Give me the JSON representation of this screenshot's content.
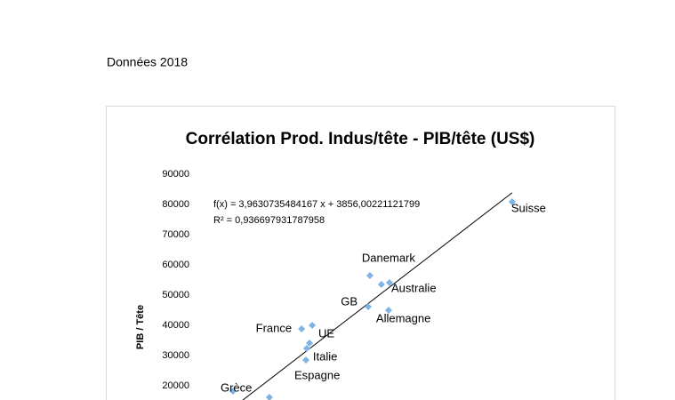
{
  "header": {
    "text": "Données 2018"
  },
  "chart_data": {
    "type": "scatter",
    "title": "Corrélation Prod. Indus/tête - PIB/tête (US$)",
    "y_label": "PIB / Tête",
    "color": "#7fb2e5",
    "trendline_color": "#000000",
    "trendline": {
      "slope": 3.9630735484167,
      "intercept": 3856.00221121799,
      "equation": "f(x) = 3,9630735484167 x + 3856,00221121799",
      "r2": "R² = 0,936697931787958"
    },
    "labels": [
      "Suisse",
      "Danemark",
      "Australie",
      null,
      "GB",
      "Allemagne",
      "France",
      null,
      "UE",
      "Italie",
      "Espagne",
      "Grèce",
      null
    ],
    "x": [
      20190,
      11050,
      12310,
      11790,
      10940,
      12250,
      6660,
      7340,
      7170,
      6990,
      6940,
      2250,
      4590
    ],
    "values": [
      80880,
      56470,
      54120,
      53530,
      46180,
      45000,
      38820,
      40000,
      34120,
      32350,
      28530,
      18240,
      16180
    ],
    "xlim": [
      0,
      25000
    ],
    "ylim": [
      0,
      90000
    ],
    "yticks": [
      20000,
      30000,
      40000,
      50000,
      60000,
      70000,
      80000,
      90000
    ]
  }
}
